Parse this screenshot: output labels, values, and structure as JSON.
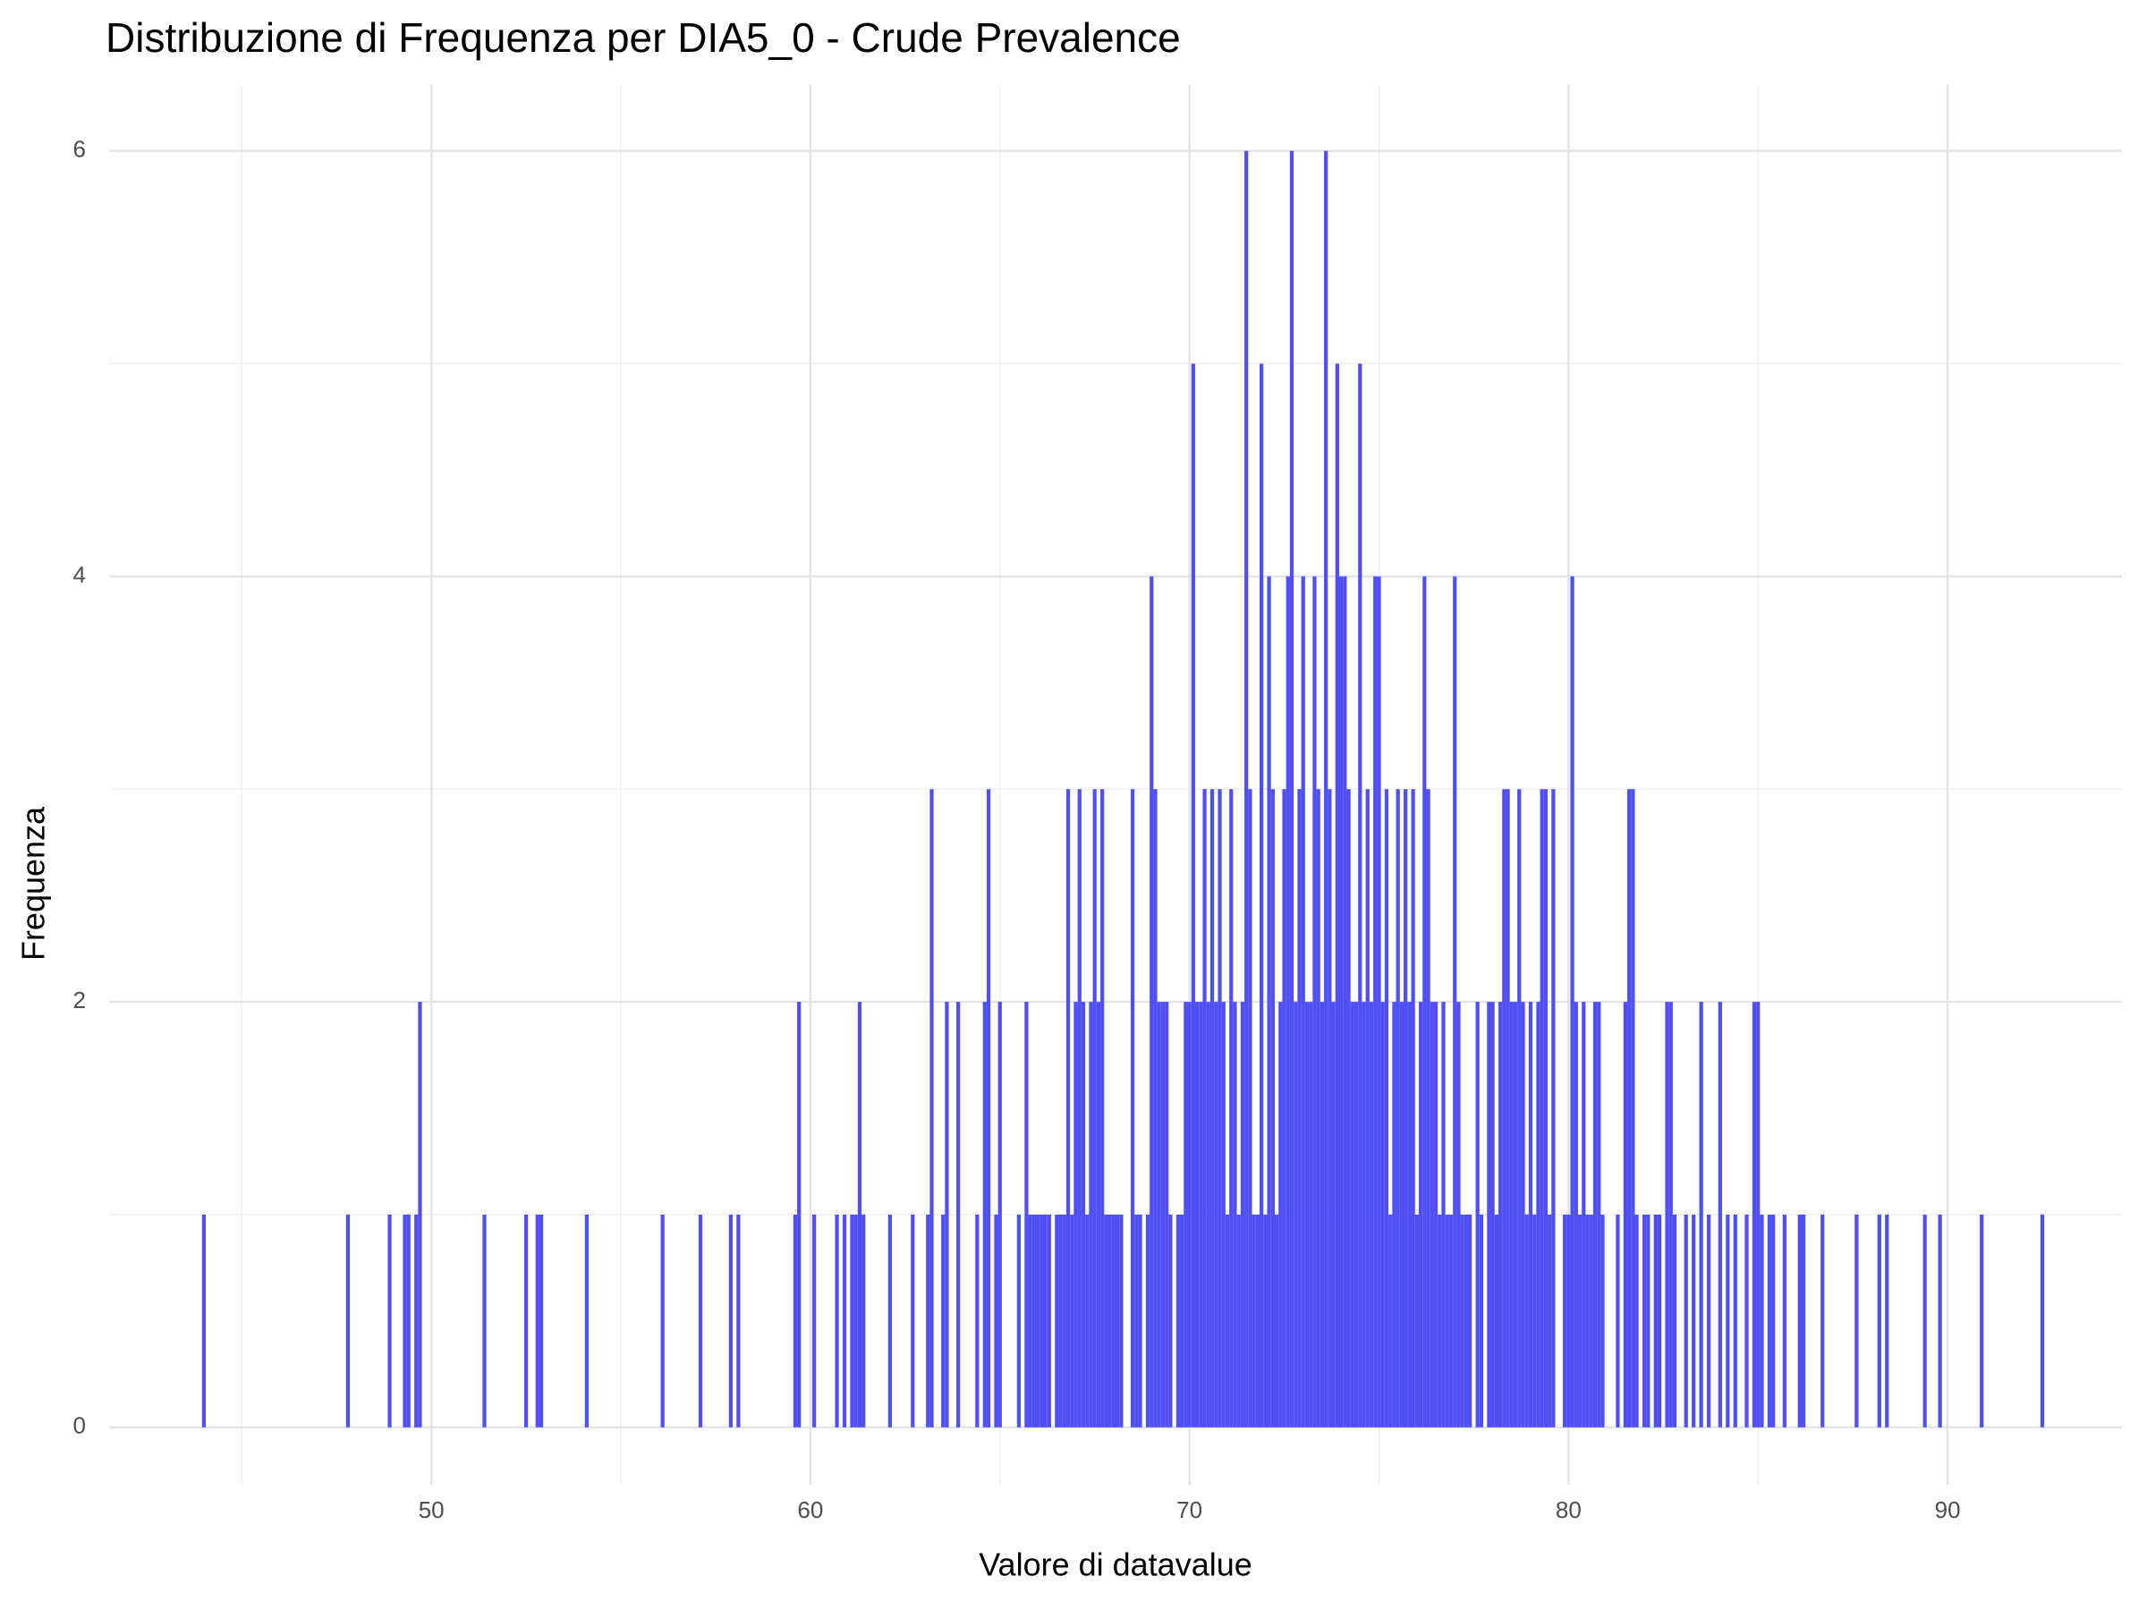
{
  "chart_data": {
    "type": "histogram",
    "title": "Distribuzione di Frequenza per DIA5_0 - Crude Prevalence",
    "x_label": "Valore di datavalue",
    "y_label": "Frequenza",
    "color": "#4f4ff5",
    "x": [
      44.0,
      47.8,
      48.9,
      49.3,
      49.4,
      49.6,
      49.7,
      51.4,
      52.5,
      52.8,
      52.9,
      54.1,
      56.1,
      57.1,
      57.9,
      58.1,
      59.6,
      59.7,
      60.1,
      60.7,
      60.9,
      61.1,
      61.2,
      61.3,
      61.4,
      62.1,
      62.7,
      63.1,
      63.2,
      63.5,
      63.6,
      63.9,
      64.4,
      64.6,
      64.7,
      64.9,
      65.0,
      65.5,
      65.7,
      65.8,
      65.9,
      66.0,
      66.1,
      66.2,
      66.3,
      66.5,
      66.6,
      66.7,
      66.8,
      66.9,
      67.0,
      67.1,
      67.2,
      67.3,
      67.4,
      67.5,
      67.6,
      67.7,
      67.8,
      67.9,
      68.0,
      68.1,
      68.2,
      68.5,
      68.6,
      68.7,
      68.9,
      69.0,
      69.1,
      69.2,
      69.3,
      69.4,
      69.5,
      69.7,
      69.8,
      69.9,
      70.0,
      70.1,
      70.2,
      70.3,
      70.4,
      70.5,
      70.6,
      70.7,
      70.8,
      70.9,
      71.0,
      71.1,
      71.2,
      71.3,
      71.4,
      71.5,
      71.6,
      71.7,
      71.8,
      71.9,
      72.0,
      72.1,
      72.2,
      72.3,
      72.4,
      72.5,
      72.6,
      72.7,
      72.8,
      72.9,
      73.0,
      73.1,
      73.2,
      73.3,
      73.4,
      73.5,
      73.6,
      73.7,
      73.8,
      73.9,
      74.0,
      74.1,
      74.2,
      74.3,
      74.4,
      74.5,
      74.6,
      74.7,
      74.8,
      74.9,
      75.0,
      75.1,
      75.2,
      75.3,
      75.4,
      75.5,
      75.6,
      75.7,
      75.8,
      75.9,
      76.0,
      76.1,
      76.2,
      76.3,
      76.4,
      76.5,
      76.6,
      76.7,
      76.8,
      76.9,
      77.0,
      77.1,
      77.2,
      77.3,
      77.4,
      77.6,
      77.7,
      77.9,
      78.0,
      78.1,
      78.2,
      78.3,
      78.4,
      78.5,
      78.6,
      78.7,
      78.8,
      78.9,
      79.0,
      79.1,
      79.2,
      79.3,
      79.4,
      79.5,
      79.6,
      79.9,
      80.0,
      80.1,
      80.2,
      80.3,
      80.4,
      80.5,
      80.6,
      80.7,
      80.8,
      80.9,
      81.3,
      81.5,
      81.6,
      81.7,
      81.8,
      82.0,
      82.1,
      82.3,
      82.4,
      82.6,
      82.7,
      82.8,
      83.1,
      83.3,
      83.5,
      83.7,
      84.0,
      84.2,
      84.4,
      84.7,
      84.9,
      85.0,
      85.1,
      85.3,
      85.4,
      85.7,
      86.1,
      86.2,
      86.7,
      87.6,
      88.2,
      88.4,
      89.4,
      89.8,
      90.9,
      92.5
    ],
    "values": [
      1,
      1,
      1,
      1,
      1,
      1,
      2,
      1,
      1,
      1,
      1,
      1,
      1,
      1,
      1,
      1,
      1,
      2,
      1,
      1,
      1,
      1,
      1,
      2,
      1,
      1,
      1,
      1,
      3,
      1,
      2,
      2,
      1,
      2,
      3,
      1,
      2,
      1,
      2,
      1,
      1,
      1,
      1,
      1,
      1,
      1,
      1,
      1,
      3,
      1,
      2,
      3,
      2,
      1,
      2,
      3,
      2,
      3,
      1,
      1,
      1,
      1,
      1,
      3,
      1,
      1,
      1,
      4,
      3,
      2,
      2,
      2,
      1,
      1,
      1,
      2,
      2,
      5,
      2,
      2,
      3,
      2,
      3,
      2,
      3,
      2,
      1,
      3,
      2,
      1,
      2,
      6,
      3,
      1,
      1,
      5,
      1,
      4,
      3,
      1,
      2,
      3,
      4,
      6,
      2,
      3,
      4,
      2,
      2,
      4,
      3,
      2,
      6,
      3,
      2,
      5,
      4,
      4,
      3,
      2,
      2,
      5,
      2,
      3,
      2,
      4,
      4,
      2,
      3,
      1,
      2,
      3,
      2,
      3,
      2,
      3,
      1,
      2,
      4,
      3,
      2,
      2,
      1,
      2,
      1,
      1,
      4,
      2,
      1,
      1,
      1,
      2,
      1,
      2,
      2,
      1,
      2,
      3,
      3,
      2,
      2,
      3,
      2,
      1,
      2,
      1,
      2,
      3,
      3,
      1,
      3,
      1,
      1,
      4,
      2,
      1,
      2,
      1,
      1,
      2,
      2,
      1,
      1,
      2,
      3,
      3,
      1,
      1,
      1,
      1,
      1,
      2,
      2,
      1,
      1,
      1,
      2,
      1,
      2,
      1,
      1,
      1,
      2,
      2,
      1,
      1,
      1,
      1,
      1,
      1,
      1,
      1,
      1,
      1,
      1,
      1,
      1,
      1
    ],
    "xlim": [
      41.5,
      94.6
    ],
    "ylim": [
      -0.27,
      6.31
    ],
    "xticks": [
      50,
      60,
      70,
      80,
      90
    ],
    "yticks": [
      0,
      2,
      4,
      6
    ],
    "x_minor_grid": [
      45,
      55,
      65,
      75,
      85,
      95
    ],
    "y_minor_grid": [
      1,
      3,
      5
    ],
    "grid": true
  }
}
